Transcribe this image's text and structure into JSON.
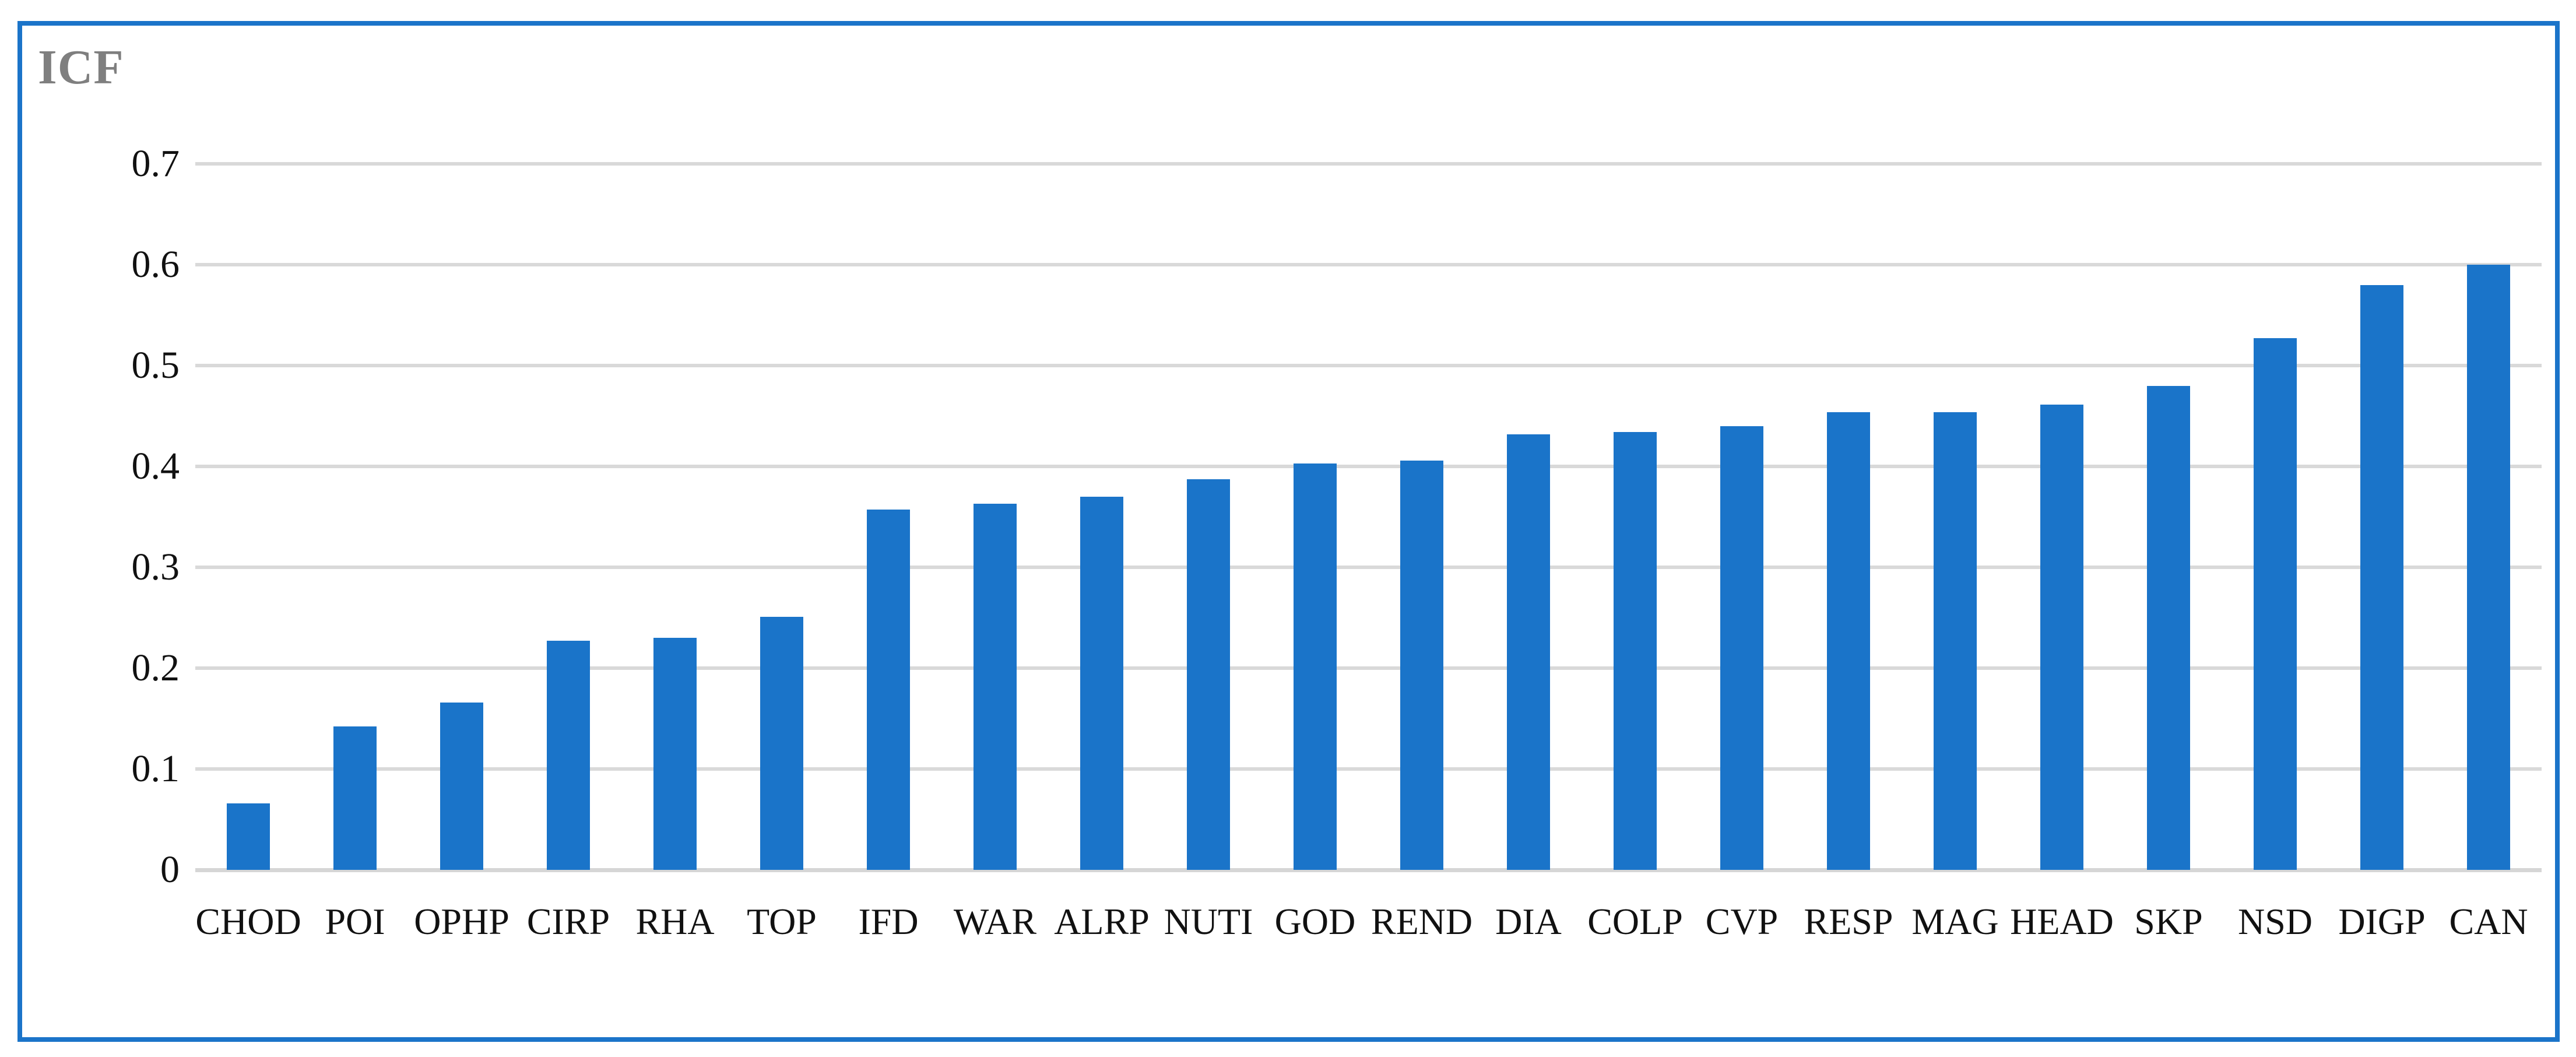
{
  "colors": {
    "frame_border_blue": "#1B74C9",
    "bar_blue": "#1A74C9",
    "gridline_gray": "#D9D9D9",
    "baseline_gray": "#D6D6D6",
    "title_gray": "#7F7F7F",
    "tick_label_color": "#111111",
    "background": "#FFFFFF"
  },
  "chart_data": {
    "type": "bar",
    "title": "ICF",
    "categories": [
      "CHOD",
      "POI",
      "OPHP",
      "CIRP",
      "RHA",
      "TOP",
      "IFD",
      "WAR",
      "ALRP",
      "NUTI",
      "GOD",
      "REND",
      "DIA",
      "COLP",
      "CVP",
      "RESP",
      "MAG",
      "HEAD",
      "SKP",
      "NSD",
      "DIGP",
      "CAN"
    ],
    "values": [
      0.066,
      0.142,
      0.166,
      0.227,
      0.23,
      0.251,
      0.357,
      0.363,
      0.37,
      0.387,
      0.403,
      0.406,
      0.432,
      0.434,
      0.44,
      0.454,
      0.454,
      0.461,
      0.48,
      0.527,
      0.58,
      0.6
    ],
    "xlabel": "",
    "ylabel": "",
    "ylim": [
      0,
      0.7
    ],
    "ytick_labels": [
      "0",
      "0.1",
      "0.2",
      "0.3",
      "0.4",
      "0.5",
      "0.6",
      "0.7"
    ],
    "ytick_values": [
      0,
      0.1,
      0.2,
      0.3,
      0.4,
      0.5,
      0.6,
      0.7
    ],
    "grid": "horizontal",
    "legend": "none"
  }
}
